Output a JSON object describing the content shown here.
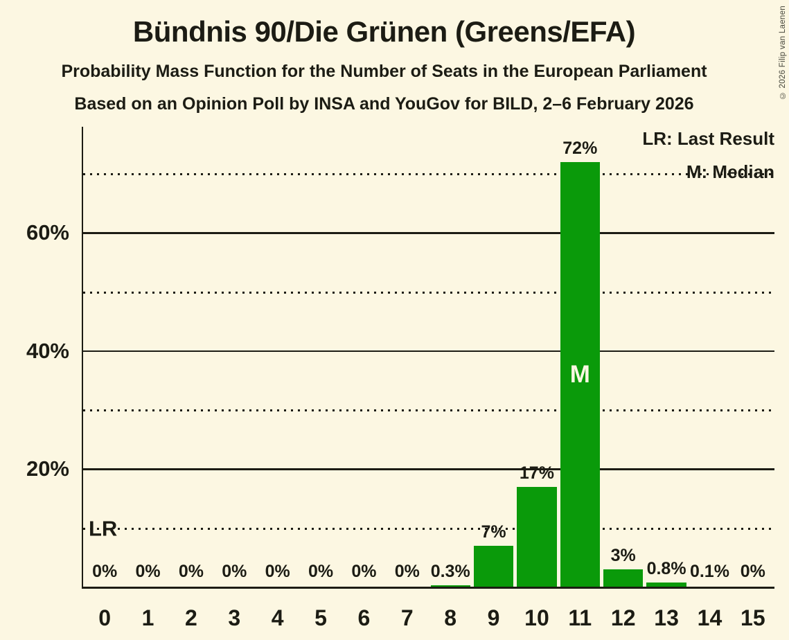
{
  "title": "Bündnis 90/Die Grünen (Greens/EFA)",
  "subtitle": "Probability Mass Function for the Number of Seats in the European Parliament",
  "source_line": "Based on an Opinion Poll by INSA and YouGov for BILD, 2–6 February 2026",
  "copyright": "© 2026 Filip van Laenen",
  "legend": {
    "lr": "LR: Last Result",
    "m": "M: Median"
  },
  "annotations": {
    "lr": "LR",
    "median": "M"
  },
  "colors": {
    "background": "#fcf7e2",
    "bar": "#0a9a0a",
    "text": "#1c1c14",
    "bar_text": "#fcf7e2"
  },
  "chart_data": {
    "type": "bar",
    "title": "Probability Mass Function for the Number of Seats in the European Parliament",
    "categories": [
      "0",
      "1",
      "2",
      "3",
      "4",
      "5",
      "6",
      "7",
      "8",
      "9",
      "10",
      "11",
      "12",
      "13",
      "14",
      "15"
    ],
    "values": [
      0,
      0,
      0,
      0,
      0,
      0,
      0,
      0,
      0.3,
      7,
      17,
      72,
      3,
      0.8,
      0.1,
      0
    ],
    "bar_labels": [
      "0%",
      "0%",
      "0%",
      "0%",
      "0%",
      "0%",
      "0%",
      "0%",
      "0.3%",
      "7%",
      "17%",
      "72%",
      "3%",
      "0.8%",
      "0.1%",
      "0%"
    ],
    "median_seat_index": 11,
    "lr_line_pct": 10,
    "y_axis": {
      "max": 78,
      "ticks": [
        {
          "value": 20,
          "label": "20%"
        },
        {
          "value": 40,
          "label": "40%"
        },
        {
          "value": 60,
          "label": "60%"
        }
      ],
      "dotted_lines": [
        10,
        30,
        50,
        70
      ]
    },
    "grid": "horizontal",
    "legend_position": "top-right"
  }
}
